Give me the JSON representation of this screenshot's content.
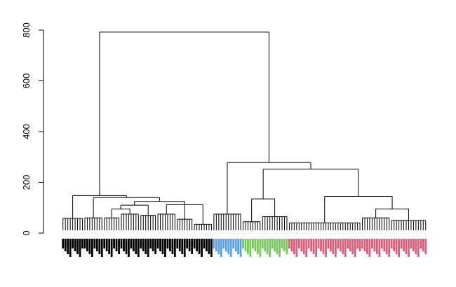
{
  "chart_data": {
    "type": "dendrogram",
    "ylim": [
      0,
      800
    ],
    "yticks": [
      0,
      200,
      400,
      600,
      800
    ],
    "tree": {
      "height": 792,
      "children": [
        {
          "height": 148,
          "children": [
            {
              "height": 58,
              "leaves": 9,
              "color": "#000000"
            },
            {
              "height": 140,
              "children": [
                {
                  "height": 60,
                  "leaves": 8,
                  "color": "#000000"
                },
                {
                  "height": 125,
                  "children": [
                    {
                      "height": 110,
                      "children": [
                        {
                          "height": 95,
                          "children": [
                            {
                              "height": 60,
                              "leaves": 7,
                              "color": "#000000"
                            },
                            {
                              "height": 75,
                              "leaves": 8,
                              "color": "#000000"
                            }
                          ]
                        },
                        {
                          "height": 70,
                          "leaves": 7,
                          "color": "#000000"
                        }
                      ]
                    },
                    {
                      "height": 112,
                      "children": [
                        {
                          "height": 75,
                          "leaves": 8,
                          "color": "#000000"
                        },
                        {
                          "height": 55,
                          "leaves": 7,
                          "color": "#000000"
                        },
                        {
                          "height": 35,
                          "leaves": 8,
                          "color": "#000000"
                        }
                      ]
                    }
                  ]
                }
              ]
            }
          ]
        },
        {
          "height": 278,
          "children": [
            {
              "height": 75,
              "leaves": 12,
              "color": "#5aa0e6"
            },
            {
              "height": 252,
              "children": [
                {
                  "height": 135,
                  "children": [
                    {
                      "height": 45,
                      "leaves": 8,
                      "color": "#7cc55f"
                    },
                    {
                      "height": 65,
                      "leaves": 11,
                      "color": "#7cc55f"
                    }
                  ]
                },
                {
                  "height": 145,
                  "children": [
                    {
                      "height": 40,
                      "leaves": 30,
                      "color": "#d65f7c"
                    },
                    {
                      "height": 95,
                      "children": [
                        {
                          "height": 60,
                          "leaves": 12,
                          "color": "#d65f7c"
                        },
                        {
                          "height": 50,
                          "leaves": 15,
                          "color": "#d65f7c"
                        }
                      ]
                    }
                  ]
                }
              ]
            }
          ]
        }
      ]
    }
  }
}
